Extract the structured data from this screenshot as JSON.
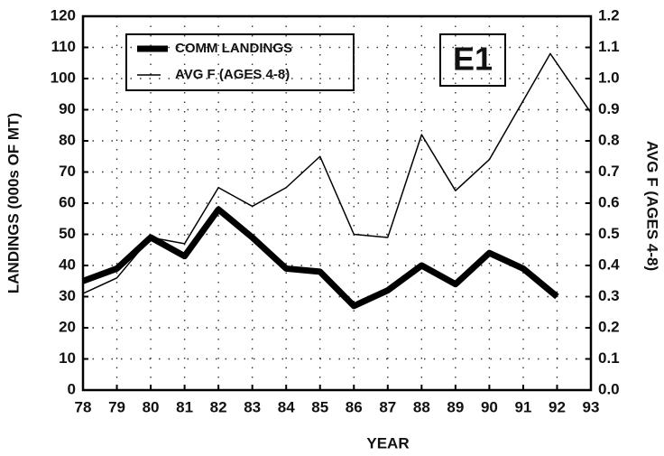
{
  "chart_data": {
    "type": "line",
    "xlabel": "YEAR",
    "ylabel": "LANDINGS (000s OF MT)",
    "y2label": "AVG F (AGES 4-8)",
    "annotation": "E1",
    "legend": "upper left",
    "grid": true,
    "xlim": [
      78,
      93
    ],
    "xticks": [
      78,
      79,
      80,
      81,
      82,
      83,
      84,
      85,
      86,
      87,
      88,
      89,
      90,
      91,
      92,
      93
    ],
    "ylim": [
      0,
      120
    ],
    "yticks": [
      0,
      10,
      20,
      30,
      40,
      50,
      60,
      70,
      80,
      90,
      100,
      110,
      120
    ],
    "y2lim": [
      0,
      1.2
    ],
    "y2ticks": [
      {
        "value": 0,
        "label": "0.0"
      },
      0.1,
      0.2,
      0.3,
      0.4,
      0.5,
      0.6,
      0.7,
      0.8,
      0.9,
      {
        "value": 1,
        "label": "1.0"
      },
      1.1,
      1.2
    ],
    "series": [
      {
        "name": "COMM LANDINGS",
        "color": "#000000",
        "width": 7,
        "x": [
          78,
          79,
          80,
          81,
          82,
          83,
          84,
          85,
          86,
          87,
          88,
          89,
          90,
          91,
          92
        ],
        "values": [
          35,
          39,
          49,
          43,
          58,
          49,
          39,
          38,
          27,
          32,
          40,
          34,
          44,
          39,
          30
        ]
      },
      {
        "name": "AVG F (AGES 4-8)",
        "color": "#000000",
        "width": 1.5,
        "axis": "y2",
        "x": [
          78,
          79,
          80,
          81,
          82,
          83,
          84,
          85,
          86,
          87,
          88,
          89,
          90,
          91.8,
          93
        ],
        "values": [
          0.31,
          0.36,
          0.49,
          0.47,
          0.65,
          0.59,
          0.65,
          0.75,
          0.5,
          0.49,
          0.82,
          0.64,
          0.74,
          1.08,
          0.89
        ]
      }
    ]
  }
}
